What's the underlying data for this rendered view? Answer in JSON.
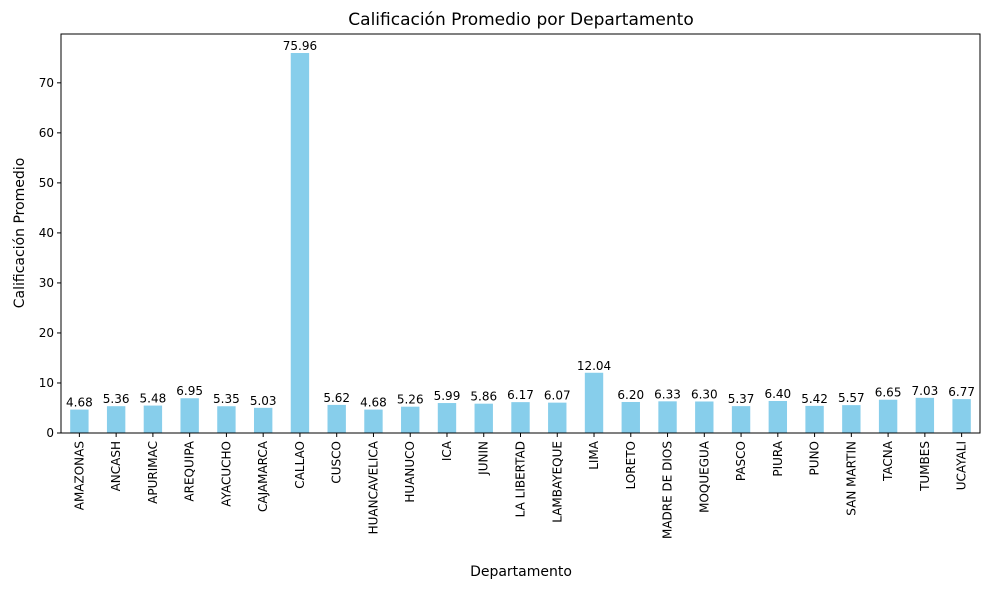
{
  "chart_data": {
    "type": "bar",
    "title": "Calificación Promedio por Departamento",
    "xlabel": "Departamento",
    "ylabel": "Calificación Promedio",
    "categories": [
      "AMAZONAS",
      "ANCASH",
      "APURIMAC",
      "AREQUIPA",
      "AYACUCHO",
      "CAJAMARCA",
      "CALLAO",
      "CUSCO",
      "HUANCAVELICA",
      "HUANUCO",
      "ICA",
      "JUNIN",
      "LA LIBERTAD",
      "LAMBAYEQUE",
      "LIMA",
      "LORETO",
      "MADRE DE DIOS",
      "MOQUEGUA",
      "PASCO",
      "PIURA",
      "PUNO",
      "SAN MARTIN",
      "TACNA",
      "TUMBES",
      "UCAYALI"
    ],
    "values": [
      4.68,
      5.36,
      5.48,
      6.95,
      5.35,
      5.03,
      75.96,
      5.62,
      4.68,
      5.26,
      5.99,
      5.86,
      6.17,
      6.07,
      12.04,
      6.2,
      6.33,
      6.3,
      5.37,
      6.4,
      5.42,
      5.57,
      6.65,
      7.03,
      6.77
    ],
    "value_labels": [
      "4.68",
      "5.36",
      "5.48",
      "6.95",
      "5.35",
      "5.03",
      "75.96",
      "5.62",
      "4.68",
      "5.26",
      "5.99",
      "5.86",
      "6.17",
      "6.07",
      "12.04",
      "6.20",
      "6.33",
      "6.30",
      "5.37",
      "6.40",
      "5.42",
      "5.57",
      "6.65",
      "7.03",
      "6.77"
    ],
    "yticks": [
      0,
      10,
      20,
      30,
      40,
      50,
      60,
      70
    ],
    "ylim": [
      0,
      79.76
    ],
    "bar_color": "#87CEEB",
    "grid": false,
    "legend": "none"
  }
}
